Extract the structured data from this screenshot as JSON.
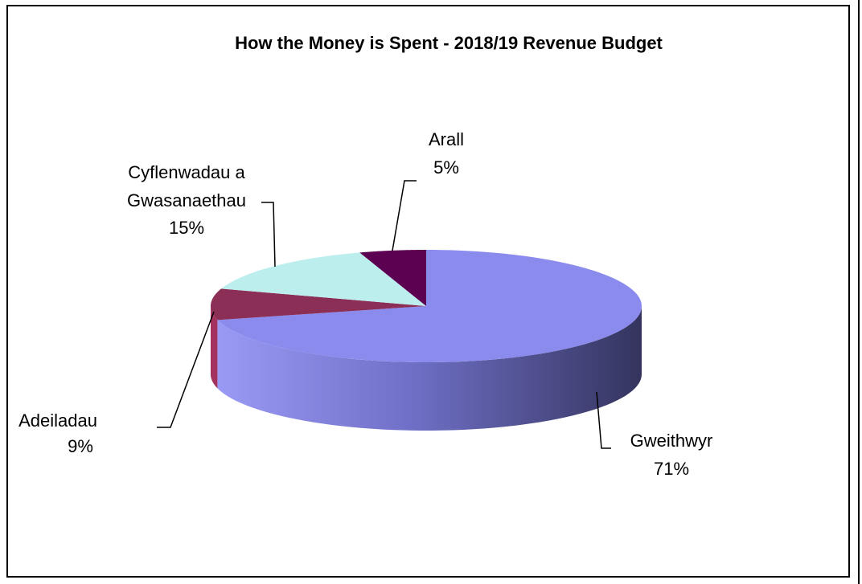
{
  "chart_data": {
    "type": "pie3d",
    "title": "How the Money is Spent - 2018/19 Revenue Budget",
    "categories": [
      "Gweithwyr",
      "Adeiladau",
      "Cyflenwadau a Gwasanaethau",
      "Arall"
    ],
    "values": [
      71,
      9,
      15,
      5
    ],
    "value_labels": [
      "71%",
      "9%",
      "15%",
      "5%"
    ],
    "colors": [
      "#8b8bee",
      "#8b2f57",
      "#bdeeee",
      "#5c0052"
    ]
  }
}
